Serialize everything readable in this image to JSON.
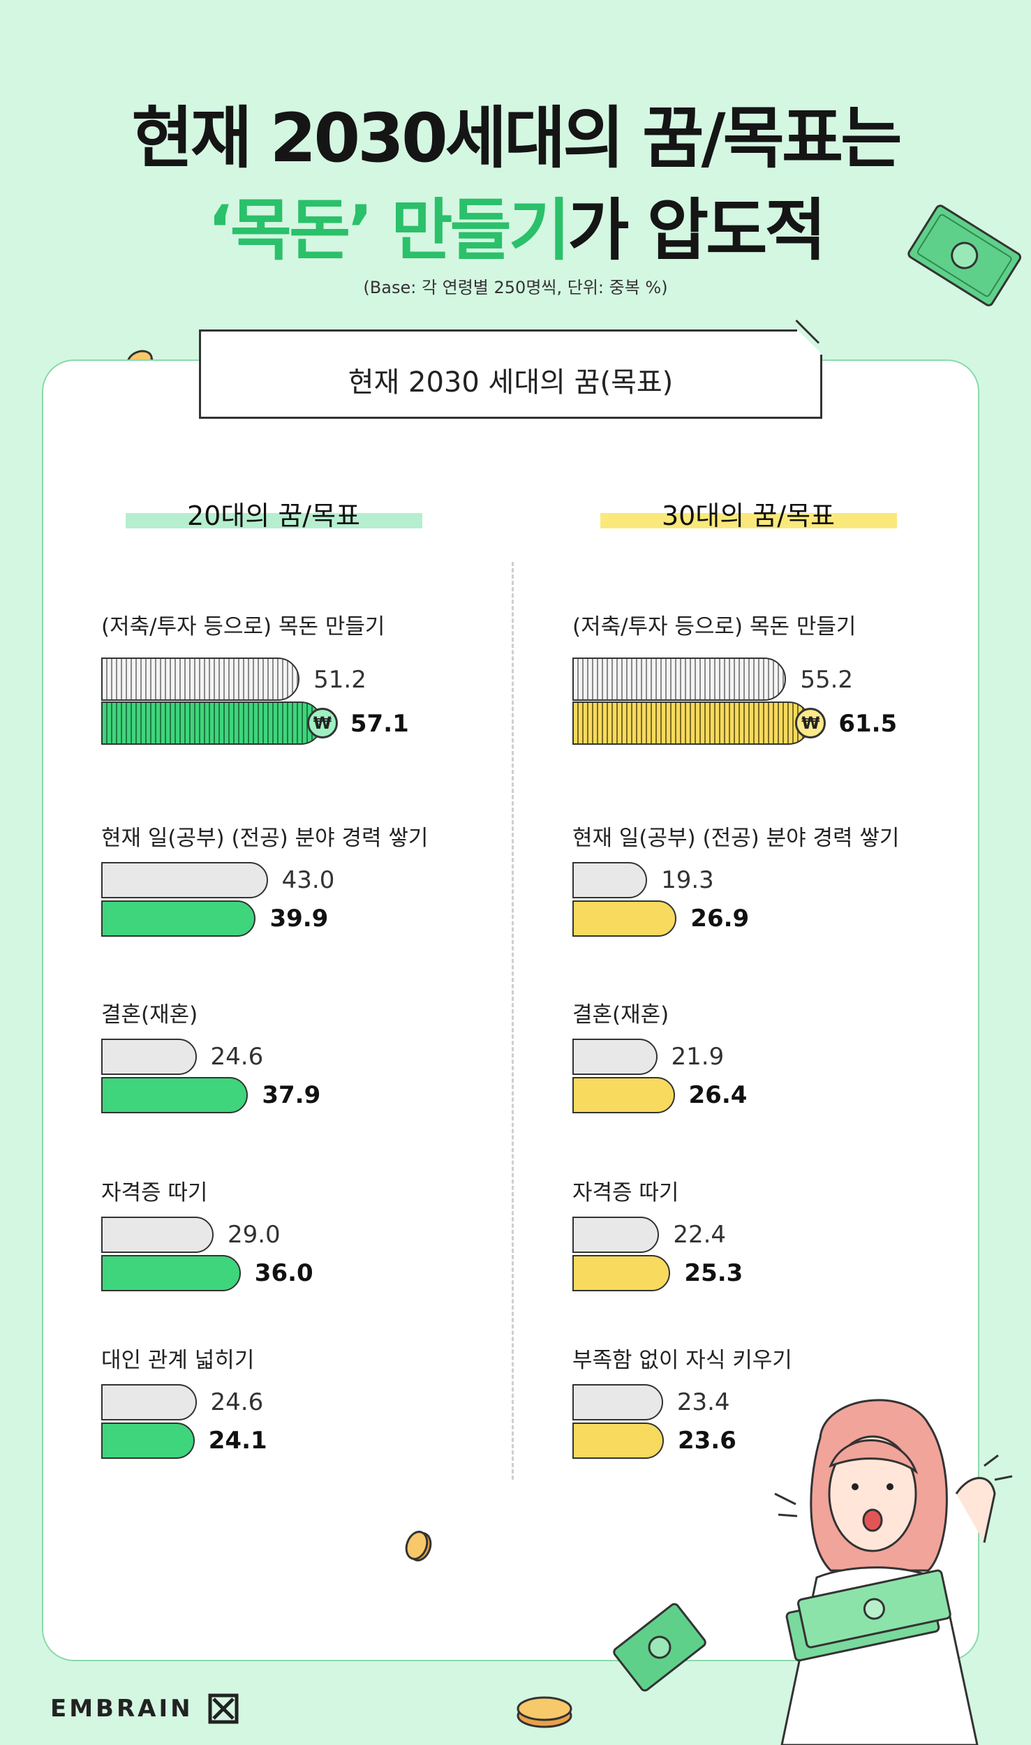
{
  "title": {
    "line1": "현재 2030세대의 꿈/목표는",
    "line2_accent": "‘목돈’ 만들기",
    "line2_rest": "가 압도적"
  },
  "base_note": "(Base: 각 연령별 250명씩, 단위: 중복 %)",
  "subtitle": "현재 2030 세대의 꿈(목표)",
  "won_symbol": "₩",
  "brand": "EMBRAIN",
  "colors": {
    "background": "#d4f7e2",
    "green": "#3fd57c",
    "yellow": "#f7da5e",
    "gray": "#e8e8e8"
  },
  "chart_data": [
    {
      "type": "bar",
      "orientation": "horizontal",
      "title": "20대의 꿈/목표",
      "categories": [
        "(저축/투자 등으로) 목돈 만들기",
        "현재 일(공부) (전공) 분야 경력 쌓기",
        "결혼(재혼)",
        "자격증 따기",
        "대인 관계 넓히기"
      ],
      "series": [
        {
          "values": [
            51.2,
            43.0,
            24.6,
            29.0,
            24.6
          ],
          "color": "#e8e8e8"
        },
        {
          "values": [
            57.1,
            39.9,
            37.9,
            36.0,
            24.1
          ],
          "color": "#3fd57c"
        }
      ],
      "value_labels": [
        [
          "51.2",
          "43.0",
          "24.6",
          "29.0",
          "24.6"
        ],
        [
          "57.1",
          "39.9",
          "37.9",
          "36.0",
          "24.1"
        ]
      ],
      "xlim": [
        0,
        100
      ]
    },
    {
      "type": "bar",
      "orientation": "horizontal",
      "title": "30대의 꿈/목표",
      "categories": [
        "(저축/투자 등으로) 목돈 만들기",
        "현재 일(공부) (전공) 분야 경력 쌓기",
        "결혼(재혼)",
        "자격증 따기",
        "부족함 없이 자식 키우기"
      ],
      "series": [
        {
          "values": [
            55.2,
            19.3,
            21.9,
            22.4,
            23.4
          ],
          "color": "#e8e8e8"
        },
        {
          "values": [
            61.5,
            26.9,
            26.4,
            25.3,
            23.6
          ],
          "color": "#f7da5e"
        }
      ],
      "value_labels": [
        [
          "55.2",
          "19.3",
          "21.9",
          "22.4",
          "23.4"
        ],
        [
          "61.5",
          "26.9",
          "26.4",
          "25.3",
          "23.6"
        ]
      ],
      "xlim": [
        0,
        100
      ]
    }
  ]
}
